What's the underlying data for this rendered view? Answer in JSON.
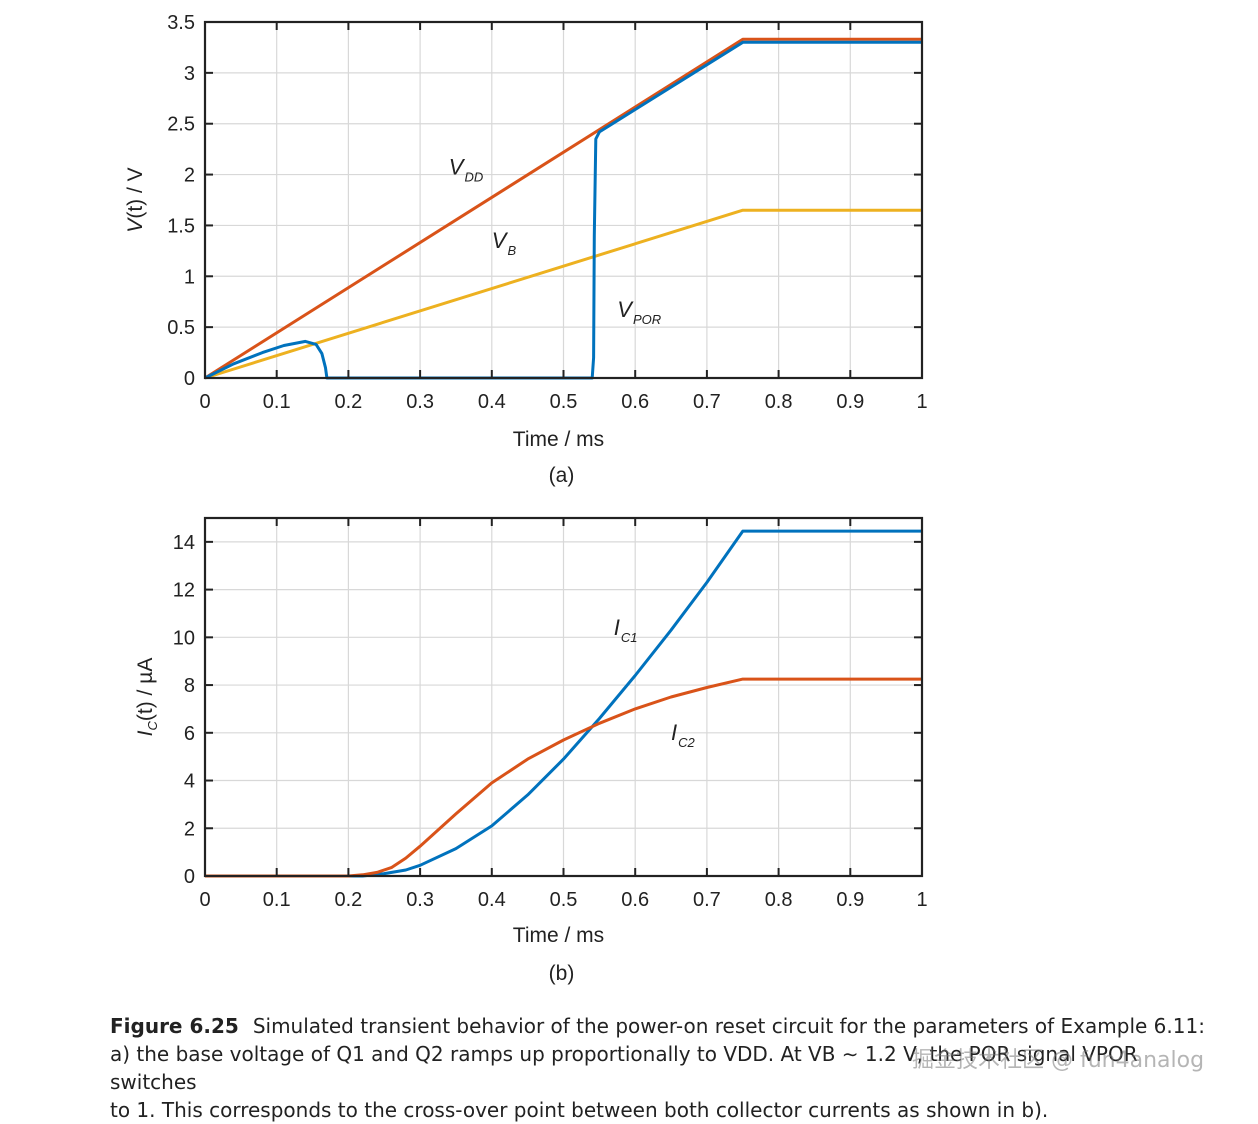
{
  "chart_data": [
    {
      "id": "a",
      "type": "line",
      "sublabel": "(a)",
      "xlabel": "Time / ms",
      "ylabel": {
        "main": "V",
        "paren": "(t) / V"
      },
      "xlim": [
        0,
        1
      ],
      "ylim": [
        0,
        3.5
      ],
      "xticks": [
        0,
        0.1,
        0.2,
        0.3,
        0.4,
        0.5,
        0.6,
        0.7,
        0.8,
        0.9,
        1
      ],
      "xtick_labels": [
        "0",
        "0.1",
        "0.2",
        "0.3",
        "0.4",
        "0.5",
        "0.6",
        "0.7",
        "0.8",
        "0.9",
        "1"
      ],
      "yticks": [
        0,
        0.5,
        1,
        1.5,
        2,
        2.5,
        3,
        3.5
      ],
      "ytick_labels": [
        "0",
        "0.5",
        "1",
        "1.5",
        "2",
        "2.5",
        "3",
        "3.5"
      ],
      "grid": true,
      "series": [
        {
          "name": "VDD",
          "color": "#d95319",
          "x": [
            0,
            0.75,
            1
          ],
          "y": [
            0,
            3.33,
            3.33
          ]
        },
        {
          "name": "VB",
          "color": "#edb120",
          "x": [
            0,
            0.75,
            1
          ],
          "y": [
            0,
            1.65,
            1.65
          ]
        },
        {
          "name": "VPOR",
          "color": "#0072bd",
          "x": [
            0,
            0.04,
            0.08,
            0.11,
            0.14,
            0.155,
            0.163,
            0.168,
            0.17,
            0.54,
            0.542,
            0.543,
            0.545,
            0.55,
            0.75,
            1
          ],
          "y": [
            0,
            0.14,
            0.25,
            0.32,
            0.36,
            0.33,
            0.24,
            0.1,
            0,
            0,
            0.2,
            1.4,
            2.35,
            2.42,
            3.3,
            3.3
          ]
        }
      ],
      "annotations": [
        {
          "main": "V",
          "sub": "DD",
          "x": 0.34,
          "y": 2.0
        },
        {
          "main": "V",
          "sub": "B",
          "x": 0.4,
          "y": 1.28
        },
        {
          "main": "V",
          "sub": "POR",
          "x": 0.575,
          "y": 0.6
        }
      ]
    },
    {
      "id": "b",
      "type": "line",
      "sublabel": "(b)",
      "xlabel": "Time / ms",
      "ylabel": {
        "main": "I",
        "sub": "C",
        "paren": "(t) / µA"
      },
      "xlim": [
        0,
        1
      ],
      "ylim": [
        0,
        15
      ],
      "xticks": [
        0,
        0.1,
        0.2,
        0.3,
        0.4,
        0.5,
        0.6,
        0.7,
        0.8,
        0.9,
        1
      ],
      "xtick_labels": [
        "0",
        "0.1",
        "0.2",
        "0.3",
        "0.4",
        "0.5",
        "0.6",
        "0.7",
        "0.8",
        "0.9",
        "1"
      ],
      "yticks": [
        0,
        2,
        4,
        6,
        8,
        10,
        12,
        14
      ],
      "ytick_labels": [
        "0",
        "2",
        "4",
        "6",
        "8",
        "10",
        "12",
        "14"
      ],
      "grid": true,
      "series": [
        {
          "name": "IC1",
          "color": "#0072bd",
          "x": [
            0,
            0.22,
            0.25,
            0.28,
            0.3,
            0.35,
            0.4,
            0.45,
            0.5,
            0.55,
            0.6,
            0.65,
            0.7,
            0.75,
            1
          ],
          "y": [
            0,
            0,
            0.1,
            0.25,
            0.45,
            1.15,
            2.1,
            3.4,
            4.9,
            6.6,
            8.4,
            10.3,
            12.3,
            14.45,
            14.45
          ]
        },
        {
          "name": "IC2",
          "color": "#d95319",
          "x": [
            0,
            0.2,
            0.22,
            0.24,
            0.26,
            0.28,
            0.3,
            0.35,
            0.4,
            0.45,
            0.5,
            0.55,
            0.6,
            0.65,
            0.7,
            0.75,
            1
          ],
          "y": [
            0,
            0,
            0.05,
            0.15,
            0.35,
            0.75,
            1.25,
            2.6,
            3.9,
            4.9,
            5.7,
            6.4,
            7.0,
            7.5,
            7.9,
            8.25,
            8.25
          ]
        }
      ],
      "annotations": [
        {
          "main": "I",
          "sub": "C1",
          "x": 0.57,
          "y": 10.1
        },
        {
          "main": "I",
          "sub": "C2",
          "x": 0.65,
          "y": 5.7
        }
      ]
    }
  ],
  "caption": {
    "label": "Figure 6.25",
    "line1": "Simulated transient behavior of the power-on reset circuit for the parameters of Example 6.11:",
    "line2": "a) the base voltage of Q1 and Q2 ramps up proportionally to VDD. At VB ∼ 1.2 V, the POR signal VPOR switches",
    "line3": "to 1. This corresponds to the cross-over point between both collector currents as shown in b)."
  },
  "watermark": "掘金技术社区 @ fun4analog"
}
